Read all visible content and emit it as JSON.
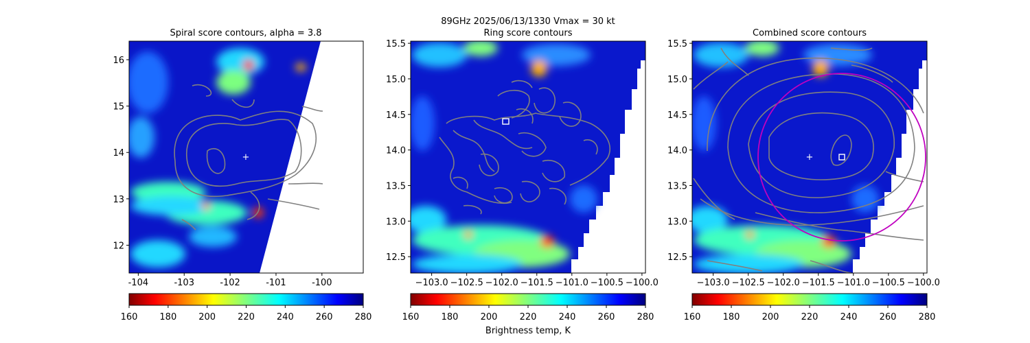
{
  "figure": {
    "suptitle_line1": "89GHz  2025/06/13/1330    Vmax = 30 kt",
    "colorbar_label": "Brightness temp, K"
  },
  "colorbar": {
    "ticks": [
      "160",
      "180",
      "200",
      "220",
      "240",
      "260",
      "280"
    ],
    "range": [
      160,
      280
    ],
    "colormap": "jet_reversed"
  },
  "chart_data": [
    {
      "type": "heatmap",
      "title": "Spiral score contours, alpha =  3.8",
      "xlabel": "",
      "ylabel": "",
      "xlim": [
        -104.2,
        -99.1
      ],
      "ylim": [
        11.4,
        16.4
      ],
      "xticks": [
        "-104",
        "-103",
        "-102",
        "-101",
        "-100"
      ],
      "yticks": [
        "12",
        "13",
        "14",
        "15",
        "16"
      ],
      "center_marker": {
        "symbol": "+",
        "lon": -101.6,
        "lat": 13.9
      },
      "colorbar_ticks": [
        "160",
        "180",
        "200",
        "220",
        "240",
        "260",
        "280"
      ]
    },
    {
      "type": "heatmap",
      "title": "Ring score contours",
      "xlabel": "",
      "ylabel": "",
      "xlim": [
        -103.3,
        -99.95
      ],
      "ylim": [
        12.27,
        15.53
      ],
      "xticks": [
        "−103.0",
        "−102.5",
        "−102.0",
        "−101.5",
        "−101.0",
        "−100.5",
        "−100.0"
      ],
      "yticks": [
        "12.5",
        "13.0",
        "13.5",
        "14.0",
        "14.5",
        "15.0",
        "15.5"
      ],
      "square_marker": {
        "symbol": "square",
        "lon": -101.9,
        "lat": 14.4
      },
      "colorbar_ticks": [
        "160",
        "180",
        "200",
        "220",
        "240",
        "260",
        "280"
      ]
    },
    {
      "type": "heatmap",
      "title": "Combined score contours",
      "xlabel": "",
      "ylabel": "",
      "xlim": [
        -103.3,
        -99.95
      ],
      "ylim": [
        12.27,
        15.53
      ],
      "xticks": [
        "−103.0",
        "−102.5",
        "−102.0",
        "−101.5",
        "−101.0",
        "−100.5",
        "−100.0"
      ],
      "yticks": [
        "12.5",
        "13.0",
        "13.5",
        "14.0",
        "14.5",
        "15.0",
        "15.5"
      ],
      "center_marker": {
        "symbol": "+",
        "lon": -101.6,
        "lat": 13.9
      },
      "square_marker": {
        "symbol": "square",
        "lon": -101.15,
        "lat": 13.9
      },
      "ring": {
        "center_lon": -101.15,
        "center_lat": 13.9,
        "radius_deg": 1.17,
        "color": "#c000c0"
      },
      "colorbar_ticks": [
        "160",
        "180",
        "200",
        "220",
        "240",
        "260",
        "280"
      ]
    }
  ]
}
